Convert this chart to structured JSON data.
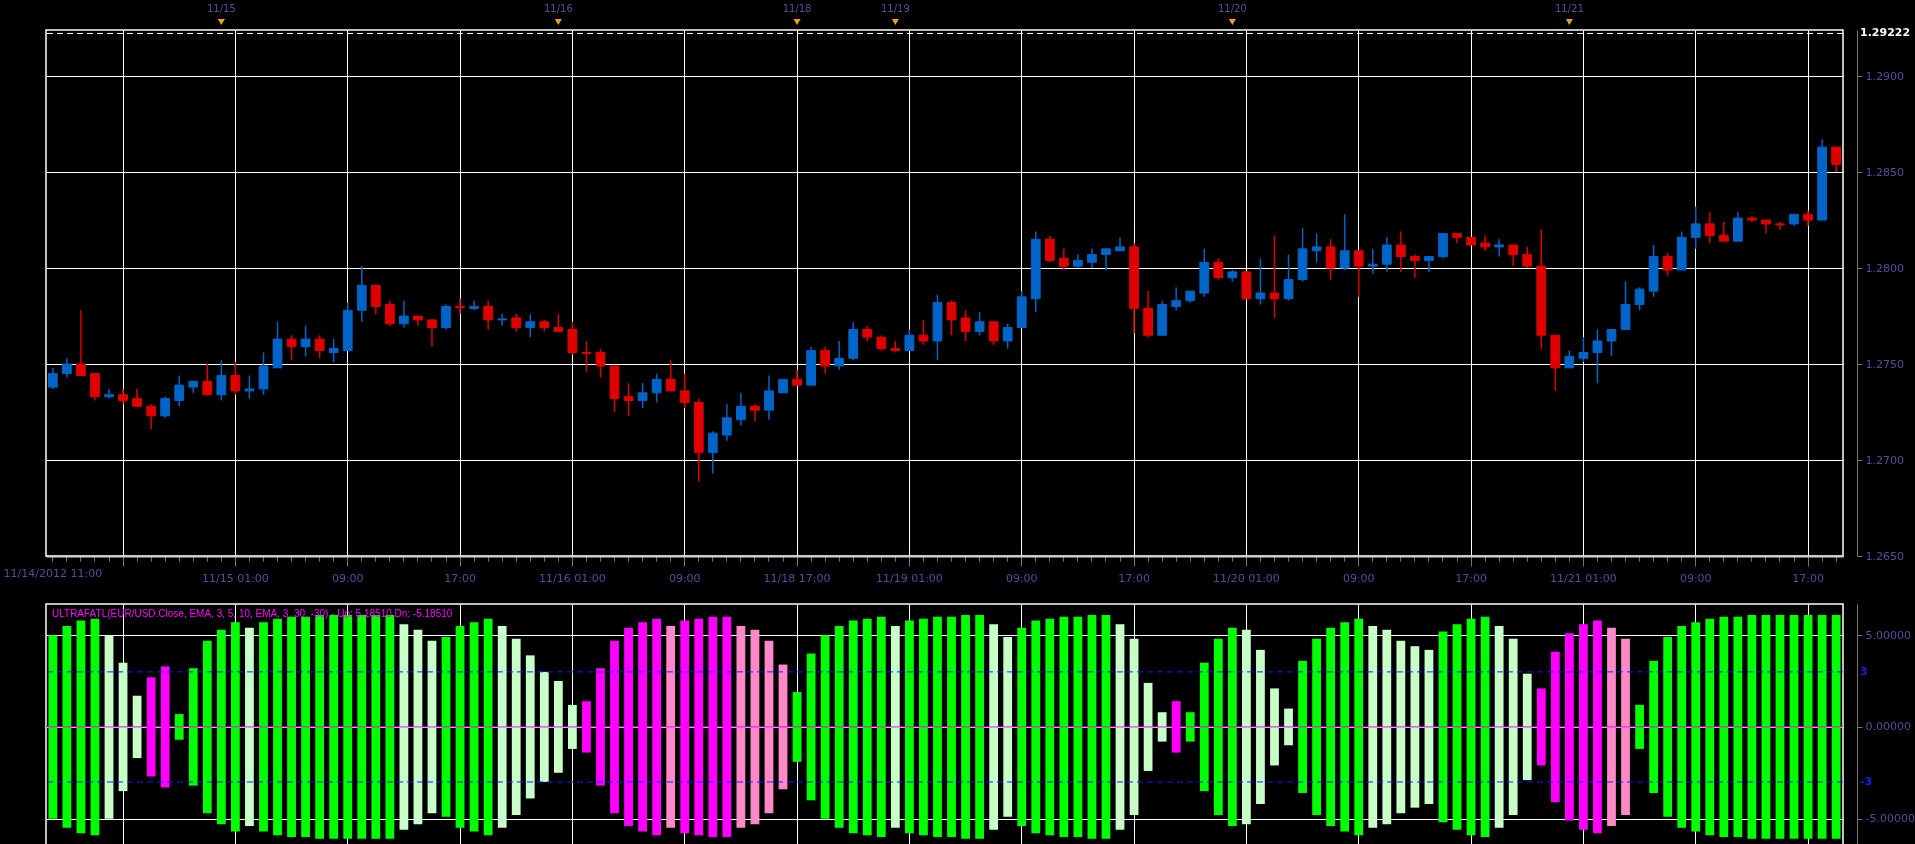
{
  "chart_data": [
    {
      "type": "candlestick",
      "categories": [
        "11/14/2012 11:00",
        null,
        null,
        null,
        null,
        null,
        null,
        null,
        null,
        null,
        null,
        null,
        null,
        "11/15 01:00",
        null,
        null,
        null,
        null,
        null,
        null,
        null,
        "09:00",
        null,
        null,
        null,
        null,
        null,
        null,
        null,
        "17:00",
        null,
        null,
        null,
        null,
        null,
        null,
        null,
        "11/16 01:00",
        null,
        null,
        null,
        null,
        null,
        null,
        null,
        "09:00",
        null,
        null,
        null,
        null,
        null,
        null,
        null,
        "11/18 17:00",
        null,
        null,
        null,
        null,
        null,
        null,
        null,
        "11/19 01:00",
        null,
        null,
        null,
        null,
        null,
        null,
        null,
        "09:00",
        null,
        null,
        null,
        null,
        null,
        null,
        null,
        "17:00",
        null,
        null,
        null,
        null,
        null,
        null,
        null,
        "11/20 01:00",
        null,
        null,
        null,
        null,
        null,
        null,
        null,
        "09:00",
        null,
        null,
        null,
        null,
        null,
        null,
        null,
        "17:00",
        null,
        null,
        null,
        null,
        null,
        null,
        null,
        "11/21 01:00",
        null,
        null,
        null,
        null,
        null,
        null,
        null,
        "09:00",
        null,
        null,
        null,
        null,
        null,
        null,
        null,
        "17:00",
        null,
        null
      ],
      "ohlc": [
        [
          1.2738,
          1.2748,
          1.2737,
          1.2745
        ],
        [
          1.2745,
          1.2753,
          1.2743,
          1.275
        ],
        [
          1.275,
          1.2778,
          1.2744,
          1.2744
        ],
        [
          1.2745,
          1.2745,
          1.2731,
          1.2733
        ],
        [
          1.2733,
          1.2737,
          1.2732,
          1.2734
        ],
        [
          1.2734,
          1.2737,
          1.2729,
          1.2731
        ],
        [
          1.2732,
          1.2737,
          1.2728,
          1.2728
        ],
        [
          1.2728,
          1.2729,
          1.2716,
          1.2723
        ],
        [
          1.2723,
          1.2733,
          1.2722,
          1.2732
        ],
        [
          1.2731,
          1.2744,
          1.2728,
          1.2739
        ],
        [
          1.2738,
          1.2741,
          1.2735,
          1.2741
        ],
        [
          1.2741,
          1.275,
          1.2734,
          1.2734
        ],
        [
          1.2734,
          1.2752,
          1.2731,
          1.2744
        ],
        [
          1.2744,
          1.2751,
          1.2734,
          1.2736
        ],
        [
          1.2736,
          1.2744,
          1.2732,
          1.2737
        ],
        [
          1.2737,
          1.2756,
          1.2734,
          1.2749
        ],
        [
          1.2748,
          1.2772,
          1.2748,
          1.2763
        ],
        [
          1.2763,
          1.2765,
          1.2752,
          1.2759
        ],
        [
          1.2759,
          1.277,
          1.2754,
          1.2763
        ],
        [
          1.2763,
          1.2765,
          1.2753,
          1.2757
        ],
        [
          1.2756,
          1.2763,
          1.2751,
          1.2758
        ],
        [
          1.2757,
          1.2782,
          1.2757,
          1.2778
        ],
        [
          1.2778,
          1.2801,
          1.2772,
          1.2791
        ],
        [
          1.2791,
          1.2791,
          1.2776,
          1.278
        ],
        [
          1.2781,
          1.2783,
          1.277,
          1.2771
        ],
        [
          1.2771,
          1.2783,
          1.2769,
          1.2775
        ],
        [
          1.2775,
          1.2775,
          1.277,
          1.2773
        ],
        [
          1.2773,
          1.2773,
          1.2759,
          1.2769
        ],
        [
          1.2769,
          1.2781,
          1.2768,
          1.278
        ],
        [
          1.278,
          1.2784,
          1.2776,
          1.27795
        ],
        [
          1.2779,
          1.2783,
          1.2778,
          1.278
        ],
        [
          1.278,
          1.2783,
          1.2768,
          1.2773
        ],
        [
          1.2773,
          1.2776,
          1.277,
          1.27735
        ],
        [
          1.2774,
          1.2776,
          1.2767,
          1.2769
        ],
        [
          1.2769,
          1.2776,
          1.2764,
          1.2772
        ],
        [
          1.2772,
          1.2773,
          1.2767,
          1.2769
        ],
        [
          1.2769,
          1.2776,
          1.2767,
          1.2767
        ],
        [
          1.2768,
          1.2772,
          1.2755,
          1.2756
        ],
        [
          1.2756,
          1.2762,
          1.2746,
          1.27555
        ],
        [
          1.2756,
          1.2758,
          1.2743,
          1.2749
        ],
        [
          1.2749,
          1.2749,
          1.2725,
          1.2732
        ],
        [
          1.2733,
          1.274,
          1.2723,
          1.2731
        ],
        [
          1.2731,
          1.274,
          1.2727,
          1.2735
        ],
        [
          1.2735,
          1.2745,
          1.273,
          1.2742
        ],
        [
          1.2742,
          1.2752,
          1.2736,
          1.2736
        ],
        [
          1.2736,
          1.2745,
          1.2727,
          1.273
        ],
        [
          1.273,
          1.2732,
          1.2689,
          1.2704
        ],
        [
          1.2704,
          1.2715,
          1.2693,
          1.2714
        ],
        [
          1.2713,
          1.2729,
          1.271,
          1.2722
        ],
        [
          1.2721,
          1.2735,
          1.2718,
          1.2728
        ],
        [
          1.2728,
          1.2729,
          1.272,
          1.2726
        ],
        [
          1.2726,
          1.2744,
          1.2721,
          1.2736
        ],
        [
          1.2735,
          1.2742,
          1.2735,
          1.2742
        ],
        [
          1.2742,
          1.2747,
          1.2739,
          1.2739
        ],
        [
          1.2739,
          1.2759,
          1.2739,
          1.2757
        ],
        [
          1.2757,
          1.2759,
          1.2745,
          1.2749
        ],
        [
          1.2749,
          1.2762,
          1.2747,
          1.2753
        ],
        [
          1.2753,
          1.2772,
          1.2752,
          1.2768
        ],
        [
          1.2768,
          1.277,
          1.2762,
          1.2764
        ],
        [
          1.2764,
          1.2765,
          1.2757,
          1.2758
        ],
        [
          1.2758,
          1.2762,
          1.2756,
          1.2757
        ],
        [
          1.2757,
          1.2768,
          1.2757,
          1.2765
        ],
        [
          1.2765,
          1.2773,
          1.276,
          1.2762
        ],
        [
          1.2762,
          1.2786,
          1.2752,
          1.2782
        ],
        [
          1.2782,
          1.2783,
          1.2765,
          1.2773
        ],
        [
          1.2774,
          1.2778,
          1.2762,
          1.2767
        ],
        [
          1.2767,
          1.2777,
          1.2765,
          1.2772
        ],
        [
          1.2772,
          1.2772,
          1.276,
          1.2762
        ],
        [
          1.2762,
          1.2771,
          1.2758,
          1.2769
        ],
        [
          1.2769,
          1.2788,
          1.2769,
          1.2785
        ],
        [
          1.2784,
          1.2819,
          1.2777,
          1.2815
        ],
        [
          1.2815,
          1.2817,
          1.2803,
          1.2804
        ],
        [
          1.2805,
          1.281,
          1.2799,
          1.2801
        ],
        [
          1.2801,
          1.2807,
          1.28,
          1.2804
        ],
        [
          1.2803,
          1.281,
          1.28,
          1.2807
        ],
        [
          1.2807,
          1.281,
          1.2799,
          1.281
        ],
        [
          1.2809,
          1.2816,
          1.2809,
          1.2811
        ],
        [
          1.2811,
          1.2813,
          1.2766,
          1.2779
        ],
        [
          1.2779,
          1.2788,
          1.2764,
          1.2765
        ],
        [
          1.2765,
          1.2783,
          1.2765,
          1.2781
        ],
        [
          1.278,
          1.279,
          1.2778,
          1.2783
        ],
        [
          1.2783,
          1.2788,
          1.2782,
          1.2788
        ],
        [
          1.2787,
          1.281,
          1.2785,
          1.2803
        ],
        [
          1.2803,
          1.2805,
          1.2794,
          1.2795
        ],
        [
          1.2795,
          1.2799,
          1.2793,
          1.2798
        ],
        [
          1.2798,
          1.2798,
          1.2784,
          1.2784
        ],
        [
          1.2784,
          1.2805,
          1.2781,
          1.2787
        ],
        [
          1.2787,
          1.2817,
          1.2774,
          1.2784
        ],
        [
          1.2784,
          1.2807,
          1.2783,
          1.2794
        ],
        [
          1.2794,
          1.2821,
          1.2793,
          1.281
        ],
        [
          1.2809,
          1.2818,
          1.2803,
          1.2811
        ],
        [
          1.2811,
          1.2815,
          1.2794,
          1.28
        ],
        [
          1.28,
          1.2828,
          1.2799,
          1.2809
        ],
        [
          1.2809,
          1.2809,
          1.2785,
          1.2801
        ],
        [
          1.2801,
          1.281,
          1.2797,
          1.2802
        ],
        [
          1.2802,
          1.2816,
          1.2798,
          1.2812
        ],
        [
          1.2812,
          1.2819,
          1.2798,
          1.2806
        ],
        [
          1.2806,
          1.2807,
          1.2795,
          1.2804
        ],
        [
          1.2804,
          1.2806,
          1.2798,
          1.2806
        ],
        [
          1.2806,
          1.2818,
          1.2805,
          1.2818
        ],
        [
          1.2818,
          1.2818,
          1.2813,
          1.2816
        ],
        [
          1.2816,
          1.2816,
          1.2812,
          1.2812
        ],
        [
          1.2813,
          1.2817,
          1.2809,
          1.2811
        ],
        [
          1.2811,
          1.2815,
          1.2806,
          1.2812
        ],
        [
          1.2812,
          1.2812,
          1.2801,
          1.2807
        ],
        [
          1.2807,
          1.2811,
          1.28,
          1.2801
        ],
        [
          1.2801,
          1.282,
          1.2758,
          1.2765
        ],
        [
          1.2765,
          1.2765,
          1.2736,
          1.2748
        ],
        [
          1.2748,
          1.2757,
          1.2748,
          1.2754
        ],
        [
          1.2753,
          1.2764,
          1.2751,
          1.2756
        ],
        [
          1.2756,
          1.2768,
          1.274,
          1.2762
        ],
        [
          1.2762,
          1.2768,
          1.2754,
          1.2768
        ],
        [
          1.2768,
          1.2793,
          1.2768,
          1.2781
        ],
        [
          1.2781,
          1.279,
          1.2778,
          1.2789
        ],
        [
          1.2788,
          1.2812,
          1.2785,
          1.2806
        ],
        [
          1.2806,
          1.2808,
          1.2796,
          1.2799
        ],
        [
          1.2799,
          1.2819,
          1.2799,
          1.2816
        ],
        [
          1.2816,
          1.2832,
          1.281,
          1.2823
        ],
        [
          1.2823,
          1.2829,
          1.2813,
          1.2817
        ],
        [
          1.2817,
          1.2824,
          1.2814,
          1.2814
        ],
        [
          1.2814,
          1.2829,
          1.2814,
          1.2826
        ],
        [
          1.2826,
          1.2827,
          1.2824,
          1.2825
        ],
        [
          1.2825,
          1.2825,
          1.2818,
          1.2823
        ],
        [
          1.2823,
          1.2824,
          1.282,
          1.28225
        ],
        [
          1.2823,
          1.2828,
          1.2822,
          1.2828
        ],
        [
          1.2828,
          1.283,
          1.2822,
          1.2825
        ],
        [
          1.2825,
          1.2867,
          1.2825,
          1.2863
        ],
        [
          1.2863,
          1.2863,
          1.285,
          1.2854
        ]
      ],
      "ylim": [
        1.265,
        1.2924
      ],
      "yticks": [
        {
          "value": 1.265,
          "label": "1.2650"
        },
        {
          "value": 1.27,
          "label": "1.2700"
        },
        {
          "value": 1.275,
          "label": "1.2750"
        },
        {
          "value": 1.28,
          "label": "1.2800"
        },
        {
          "value": 1.285,
          "label": "1.2850"
        },
        {
          "value": 1.29,
          "label": "1.2900"
        }
      ],
      "grid": true,
      "ref_lines": [
        {
          "axis": "y",
          "value": 1.29222,
          "label": "1.29222",
          "color": "#ffffff",
          "line_style": "dashed"
        }
      ],
      "annotations": [
        "11/15",
        "11/16",
        "11/18",
        "11/19",
        "11/20",
        "11/21"
      ]
    },
    {
      "type": "bar",
      "title": "ULTRAFATL(EUR/USD.Close, EMA, 3, 5, 10, EMA, 3, 30, -30) - Up: 5.18510 Dn: -5.18510",
      "categories": [
        null,
        null,
        null,
        null,
        null,
        null,
        null,
        null,
        null,
        null,
        null,
        null,
        null,
        null,
        null,
        null,
        null,
        null,
        null,
        null,
        null,
        null,
        null,
        null,
        null,
        null,
        null,
        null,
        null,
        null,
        null,
        null,
        null,
        null,
        null,
        null,
        null,
        null,
        null,
        null,
        null,
        null,
        null,
        null,
        null,
        null,
        null,
        null,
        null,
        null,
        null,
        null,
        null,
        null,
        null,
        null,
        null,
        null,
        null,
        null,
        null,
        null,
        null,
        null,
        null,
        null,
        null,
        null,
        null,
        null,
        null,
        null,
        null,
        null,
        null,
        null,
        null,
        null,
        null,
        null,
        null,
        null,
        null,
        null,
        null,
        null,
        null,
        null,
        null,
        null,
        null,
        null,
        null,
        null,
        null,
        null,
        null,
        null,
        null,
        null,
        null,
        null,
        null,
        null,
        null,
        null,
        null,
        null,
        null,
        null,
        null,
        null,
        null,
        null,
        null,
        null,
        null,
        null,
        null,
        null,
        null,
        null,
        null,
        null,
        null,
        null,
        null,
        null
      ],
      "tick_labels": "y",
      "stacked": true,
      "series": [
        {
          "values": [
            5.0,
            5.5,
            5.8,
            5.9,
            5.0,
            3.5,
            1.7,
            2.7,
            3.3,
            0.7,
            3.2,
            4.7,
            5.3,
            5.7,
            5.4,
            5.7,
            5.9,
            6.0,
            6.0,
            6.1,
            6.1,
            6.1,
            6.1,
            6.1,
            6.1,
            5.6,
            5.3,
            4.7,
            4.9,
            5.5,
            5.7,
            5.9,
            5.5,
            4.8,
            3.9,
            3.0,
            2.5,
            1.2,
            1.4,
            3.2,
            4.7,
            5.4,
            5.7,
            5.9,
            5.5,
            5.8,
            5.9,
            6.0,
            6.0,
            5.5,
            5.3,
            4.7,
            3.4,
            1.9,
            4.0,
            5.0,
            5.5,
            5.8,
            5.9,
            6.0,
            5.5,
            5.8,
            5.9,
            6.0,
            6.0,
            6.1,
            6.1,
            5.6,
            4.9,
            5.4,
            5.8,
            5.9,
            6.0,
            6.0,
            6.1,
            6.1,
            5.6,
            4.8,
            2.4,
            0.8,
            1.4,
            0.8,
            3.5,
            4.8,
            5.4,
            5.3,
            4.2,
            2.1,
            1.0,
            3.6,
            4.8,
            5.4,
            5.7,
            5.9,
            5.5,
            5.3,
            4.7,
            4.4,
            4.2,
            5.2,
            5.6,
            5.9,
            6.0,
            5.5,
            4.8,
            2.9,
            2.1,
            4.1,
            5.1,
            5.6,
            5.8,
            5.4,
            4.8,
            1.2,
            3.6,
            4.9,
            5.5,
            5.7,
            5.9,
            6.0,
            6.0,
            6.1,
            6.1,
            6.1,
            6.1,
            6.1,
            6.1,
            6.1
          ],
          "colors": [
            "#00ff00",
            "#00ff00",
            "#00ff00",
            "#00ff00",
            "#c8ffc8",
            "#c8ffc8",
            "#c8ffc8",
            "#ff00ff",
            "#ff00ff",
            "#00ff00",
            "#00ff00",
            "#00ff00",
            "#00ff00",
            "#00ff00",
            "#c8ffc8",
            "#00ff00",
            "#00ff00",
            "#00ff00",
            "#00ff00",
            "#00ff00",
            "#00ff00",
            "#00ff00",
            "#00ff00",
            "#00ff00",
            "#00ff00",
            "#c8ffc8",
            "#c8ffc8",
            "#c8ffc8",
            "#00ff00",
            "#00ff00",
            "#00ff00",
            "#00ff00",
            "#c8ffc8",
            "#c8ffc8",
            "#c8ffc8",
            "#c8ffc8",
            "#c8ffc8",
            "#c8ffc8",
            "#ff00ff",
            "#ff00ff",
            "#ff00ff",
            "#ff00ff",
            "#ff00ff",
            "#ff00ff",
            "#ff88c8",
            "#ff00ff",
            "#ff00ff",
            "#ff00ff",
            "#ff00ff",
            "#ff88c8",
            "#ff88c8",
            "#ff88c8",
            "#ff88c8",
            "#00ff00",
            "#00ff00",
            "#00ff00",
            "#00ff00",
            "#00ff00",
            "#00ff00",
            "#00ff00",
            "#c8ffc8",
            "#00ff00",
            "#00ff00",
            "#00ff00",
            "#00ff00",
            "#00ff00",
            "#00ff00",
            "#c8ffc8",
            "#c8ffc8",
            "#00ff00",
            "#00ff00",
            "#00ff00",
            "#00ff00",
            "#00ff00",
            "#00ff00",
            "#00ff00",
            "#c8ffc8",
            "#c8ffc8",
            "#c8ffc8",
            "#c8ffc8",
            "#ff00ff",
            "#00ff00",
            "#00ff00",
            "#00ff00",
            "#00ff00",
            "#c8ffc8",
            "#c8ffc8",
            "#c8ffc8",
            "#c8ffc8",
            "#00ff00",
            "#00ff00",
            "#00ff00",
            "#00ff00",
            "#00ff00",
            "#c8ffc8",
            "#c8ffc8",
            "#c8ffc8",
            "#c8ffc8",
            "#c8ffc8",
            "#00ff00",
            "#00ff00",
            "#00ff00",
            "#00ff00",
            "#c8ffc8",
            "#c8ffc8",
            "#c8ffc8",
            "#ff00ff",
            "#ff00ff",
            "#ff00ff",
            "#ff00ff",
            "#ff00ff",
            "#ff88c8",
            "#ff88c8",
            "#00ff00",
            "#00ff00",
            "#00ff00",
            "#00ff00",
            "#00ff00",
            "#00ff00",
            "#00ff00",
            "#00ff00",
            "#00ff00",
            "#00ff00",
            "#00ff00",
            "#00ff00",
            "#00ff00",
            "#00ff00",
            "#00ff00"
          ]
        },
        {
          "values": [
            -5.0,
            -5.5,
            -5.8,
            -5.9,
            -5.0,
            -3.5,
            -1.7,
            -2.7,
            -3.3,
            -0.7,
            -3.2,
            -4.7,
            -5.3,
            -5.7,
            -5.4,
            -5.7,
            -5.9,
            -6.0,
            -6.0,
            -6.1,
            -6.1,
            -6.1,
            -6.1,
            -6.1,
            -6.1,
            -5.6,
            -5.3,
            -4.7,
            -4.9,
            -5.5,
            -5.7,
            -5.9,
            -5.5,
            -4.8,
            -3.9,
            -3.0,
            -2.5,
            -1.2,
            -1.4,
            -3.2,
            -4.7,
            -5.4,
            -5.7,
            -5.9,
            -5.5,
            -5.8,
            -5.9,
            -6.0,
            -6.0,
            -5.5,
            -5.3,
            -4.7,
            -3.4,
            -1.9,
            -4.0,
            -5.0,
            -5.5,
            -5.8,
            -5.9,
            -6.0,
            -5.5,
            -5.8,
            -5.9,
            -6.0,
            -6.0,
            -6.1,
            -6.1,
            -5.6,
            -4.9,
            -5.4,
            -5.8,
            -5.9,
            -6.0,
            -6.0,
            -6.1,
            -6.1,
            -5.6,
            -4.8,
            -2.4,
            -0.8,
            -1.4,
            -0.8,
            -3.5,
            -4.8,
            -5.4,
            -5.3,
            -4.2,
            -2.1,
            -1.0,
            -3.6,
            -4.8,
            -5.4,
            -5.7,
            -5.9,
            -5.5,
            -5.3,
            -4.7,
            -4.4,
            -4.2,
            -5.2,
            -5.6,
            -5.9,
            -6.0,
            -5.5,
            -4.8,
            -2.9,
            -2.1,
            -4.1,
            -5.1,
            -5.6,
            -5.8,
            -5.4,
            -4.8,
            -1.2,
            -3.6,
            -4.9,
            -5.5,
            -5.7,
            -5.9,
            -6.0,
            -6.0,
            -6.1,
            -6.1,
            -6.1,
            -6.1,
            -6.1,
            -6.1,
            -6.1
          ],
          "colors": [
            "#00ff00",
            "#00ff00",
            "#00ff00",
            "#00ff00",
            "#c8ffc8",
            "#c8ffc8",
            "#c8ffc8",
            "#ff00ff",
            "#ff00ff",
            "#00ff00",
            "#00ff00",
            "#00ff00",
            "#00ff00",
            "#00ff00",
            "#c8ffc8",
            "#00ff00",
            "#00ff00",
            "#00ff00",
            "#00ff00",
            "#00ff00",
            "#00ff00",
            "#00ff00",
            "#00ff00",
            "#00ff00",
            "#00ff00",
            "#c8ffc8",
            "#c8ffc8",
            "#c8ffc8",
            "#00ff00",
            "#00ff00",
            "#00ff00",
            "#00ff00",
            "#c8ffc8",
            "#c8ffc8",
            "#c8ffc8",
            "#c8ffc8",
            "#c8ffc8",
            "#c8ffc8",
            "#ff00ff",
            "#ff00ff",
            "#ff00ff",
            "#ff00ff",
            "#ff00ff",
            "#ff00ff",
            "#ff88c8",
            "#ff00ff",
            "#ff00ff",
            "#ff00ff",
            "#ff00ff",
            "#ff88c8",
            "#ff88c8",
            "#ff88c8",
            "#ff88c8",
            "#00ff00",
            "#00ff00",
            "#00ff00",
            "#00ff00",
            "#00ff00",
            "#00ff00",
            "#00ff00",
            "#c8ffc8",
            "#00ff00",
            "#00ff00",
            "#00ff00",
            "#00ff00",
            "#00ff00",
            "#00ff00",
            "#c8ffc8",
            "#c8ffc8",
            "#00ff00",
            "#00ff00",
            "#00ff00",
            "#00ff00",
            "#00ff00",
            "#00ff00",
            "#00ff00",
            "#c8ffc8",
            "#c8ffc8",
            "#c8ffc8",
            "#c8ffc8",
            "#ff00ff",
            "#00ff00",
            "#00ff00",
            "#00ff00",
            "#00ff00",
            "#c8ffc8",
            "#c8ffc8",
            "#c8ffc8",
            "#c8ffc8",
            "#00ff00",
            "#00ff00",
            "#00ff00",
            "#00ff00",
            "#00ff00",
            "#c8ffc8",
            "#c8ffc8",
            "#c8ffc8",
            "#c8ffc8",
            "#c8ffc8",
            "#00ff00",
            "#00ff00",
            "#00ff00",
            "#00ff00",
            "#c8ffc8",
            "#c8ffc8",
            "#c8ffc8",
            "#ff00ff",
            "#ff00ff",
            "#ff00ff",
            "#ff00ff",
            "#ff00ff",
            "#ff88c8",
            "#ff88c8",
            "#00ff00",
            "#00ff00",
            "#00ff00",
            "#00ff00",
            "#00ff00",
            "#00ff00",
            "#00ff00",
            "#00ff00",
            "#00ff00",
            "#00ff00",
            "#00ff00",
            "#00ff00",
            "#00ff00",
            "#00ff00",
            "#00ff00"
          ]
        }
      ],
      "ylim": [
        -6.6,
        6.7
      ],
      "yticks": [
        {
          "value": -5,
          "label": "-5.00000"
        },
        {
          "value": 0,
          "label": "0.00000"
        },
        {
          "value": 5,
          "label": "5.00000"
        }
      ],
      "grid": true,
      "ref_lines": [
        {
          "axis": "y",
          "value": 3,
          "label": "3",
          "color": "#1a1aff",
          "line_style": "dashed"
        },
        {
          "axis": "y",
          "value": -3,
          "label": "-3",
          "color": "#1a1aff",
          "line_style": "dashed"
        },
        {
          "axis": "y",
          "value": 0,
          "color": "#ff00ff"
        }
      ]
    }
  ]
}
